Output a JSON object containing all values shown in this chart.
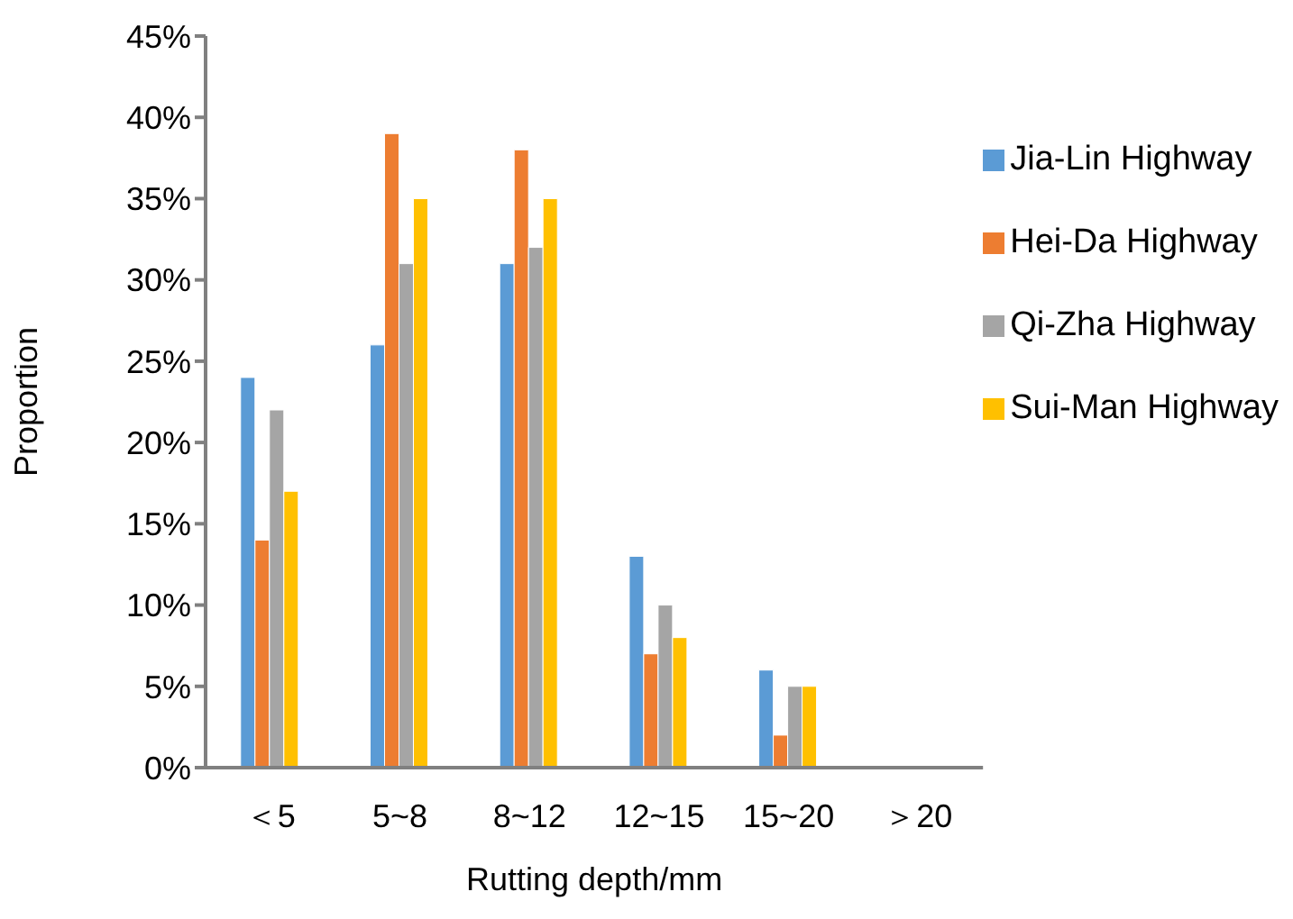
{
  "chart_data": {
    "type": "bar",
    "xlabel": "Rutting depth/mm",
    "ylabel": "Proportion",
    "categories": [
      "＜5",
      "5~8",
      "8~12",
      "12~15",
      "15~20",
      "＞20"
    ],
    "series": [
      {
        "name": "Jia-Lin Highway",
        "color": "#5b9bd5",
        "values": [
          24,
          26,
          31,
          13,
          6,
          0
        ]
      },
      {
        "name": "Hei-Da Highway",
        "color": "#ed7d31",
        "values": [
          14,
          39,
          38,
          7,
          2,
          0
        ]
      },
      {
        "name": "Qi-Zha Highway",
        "color": "#a5a5a5",
        "values": [
          22,
          31,
          32,
          10,
          5,
          0
        ]
      },
      {
        "name": "Sui-Man Highway",
        "color": "#ffc000",
        "values": [
          17,
          35,
          35,
          8,
          5,
          0
        ]
      }
    ],
    "ylim": [
      0,
      45
    ],
    "yticks": [
      {
        "value": 0,
        "label": "0%"
      },
      {
        "value": 5,
        "label": "5%"
      },
      {
        "value": 10,
        "label": "10%"
      },
      {
        "value": 15,
        "label": "15%"
      },
      {
        "value": 20,
        "label": "20%"
      },
      {
        "value": 25,
        "label": "25%"
      },
      {
        "value": 30,
        "label": "30%"
      },
      {
        "value": 35,
        "label": "35%"
      },
      {
        "value": 40,
        "label": "40%"
      },
      {
        "value": 45,
        "label": "45%"
      }
    ],
    "grid": false,
    "legend": "right"
  }
}
